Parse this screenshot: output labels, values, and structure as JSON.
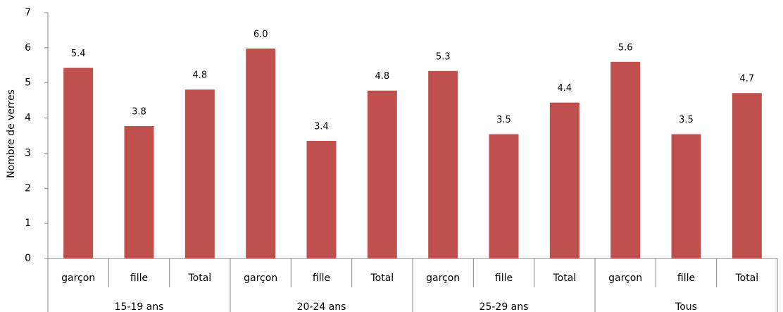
{
  "chart_data": {
    "type": "bar",
    "y_label": "Nombre de verres",
    "categories": [
      "garçon",
      "fille",
      "Total",
      "garçon",
      "fille",
      "Total",
      "garçon",
      "fille",
      "Total",
      "garçon",
      "fille",
      "Total"
    ],
    "category_groups": [
      "15-19 ans",
      "20-24 ans",
      "25-29 ans",
      "Tous"
    ],
    "values": [
      5.43,
      3.77,
      4.81,
      5.98,
      3.35,
      4.78,
      5.34,
      3.54,
      4.44,
      5.6,
      3.54,
      4.71
    ],
    "value_labels": [
      "5.4",
      "3.8",
      "4.8",
      "6.0",
      "3.4",
      "4.8",
      "5.3",
      "3.5",
      "4.4",
      "5.6",
      "3.5",
      "4.7"
    ],
    "color": "#c0504d",
    "ylim": [
      0,
      7
    ],
    "yticks": [
      0,
      1,
      2,
      3,
      4,
      5,
      6,
      7
    ],
    "grid": false
  }
}
